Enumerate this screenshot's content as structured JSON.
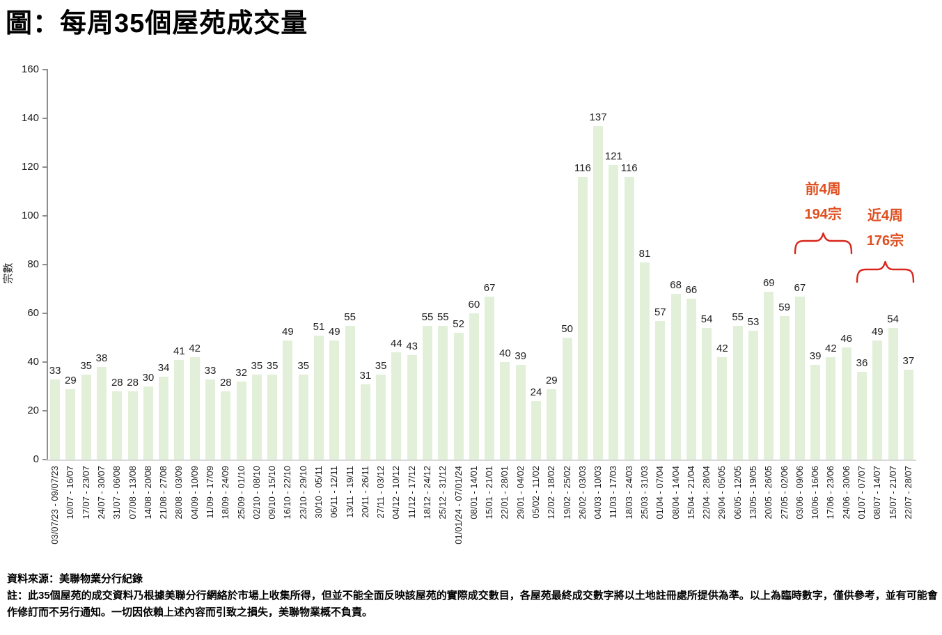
{
  "title": "圖：每周35個屋苑成交量",
  "chart_data": {
    "type": "bar",
    "title": "每周35個屋苑成交量",
    "ylabel": "宗數",
    "xlabel": "",
    "ylim": [
      0,
      160
    ],
    "yticks": [
      0,
      20,
      40,
      60,
      80,
      100,
      120,
      140,
      160
    ],
    "grid": false,
    "legend": false,
    "bar_color": "#E2F0D9",
    "categories": [
      "03/07/23 - 09/07/23",
      "10/07 - 16/07",
      "17/07 - 23/07",
      "24/07 - 30/07",
      "31/07 - 06/08",
      "07/08 - 13/08",
      "14/08 - 20/08",
      "21/08 - 27/08",
      "28/08 - 03/09",
      "04/09 - 10/09",
      "11/09 - 17/09",
      "18/09 - 24/09",
      "25/09 - 01/10",
      "02/10 - 08/10",
      "09/10 - 15/10",
      "16/10 - 22/10",
      "23/10 - 29/10",
      "30/10 - 05/11",
      "06/11 - 12/11",
      "13/11 - 19/11",
      "20/11 - 26/11",
      "27/11 - 03/12",
      "04/12 - 10/12",
      "11/12 - 17/12",
      "18/12 - 24/12",
      "25/12 - 31/12",
      "01/01/24 - 07/01/24",
      "08/01 - 14/01",
      "15/01 - 21/01",
      "22/01 - 28/01",
      "29/01 - 04/02",
      "05/02 - 11/02",
      "12/02 - 18/02",
      "19/02 - 25/02",
      "26/02 - 03/03",
      "04/03 - 10/03",
      "11/03 - 17/03",
      "18/03 - 24/03",
      "25/03 - 31/03",
      "01/04 - 07/04",
      "08/04 - 14/04",
      "15/04 - 21/04",
      "22/04 - 28/04",
      "29/04 - 05/05",
      "06/05 - 12/05",
      "13/05 - 19/05",
      "20/05 - 26/05",
      "27/05 - 02/06",
      "03/06 - 09/06",
      "10/06 - 16/06",
      "17/06 - 23/06",
      "24/06 - 30/06",
      "01/07 - 07/07",
      "08/07 - 14/07",
      "15/07 - 21/07",
      "22/07 - 28/07"
    ],
    "values": [
      33,
      29,
      35,
      38,
      28,
      28,
      30,
      34,
      41,
      42,
      33,
      28,
      32,
      35,
      35,
      49,
      35,
      51,
      49,
      55,
      31,
      35,
      44,
      43,
      55,
      55,
      52,
      60,
      67,
      40,
      39,
      24,
      29,
      50,
      116,
      137,
      121,
      116,
      81,
      57,
      68,
      66,
      54,
      42,
      55,
      53,
      69,
      59,
      67,
      39,
      42,
      46,
      36,
      49,
      54,
      37
    ],
    "annotations": [
      {
        "label": "前4周",
        "total": "194宗",
        "from_index": 48,
        "to_index": 51
      },
      {
        "label": "近4周",
        "total": "176宗",
        "from_index": 52,
        "to_index": 55
      }
    ]
  },
  "footer": {
    "source": "資料來源：美聯物業分行紀錄",
    "note": "註：此35個屋苑的成交資料乃根據美聯分行網絡於市場上收集所得，但並不能全面反映該屋苑的實際成交數目，各屋苑最終成交數字將以土地註冊處所提供為準。以上為臨時數字，僅供參考，並有可能會作修訂而不另行通知。一切因依賴上述內容而引致之損失，美聯物業概不負責。"
  },
  "colors": {
    "bar": "#E2F0D9",
    "axis": "#8E8E8E",
    "baseline": "#D8D8D8",
    "text": "#1E1E1E",
    "annotation": "#DF4E1E",
    "brace": "#D9251B"
  }
}
